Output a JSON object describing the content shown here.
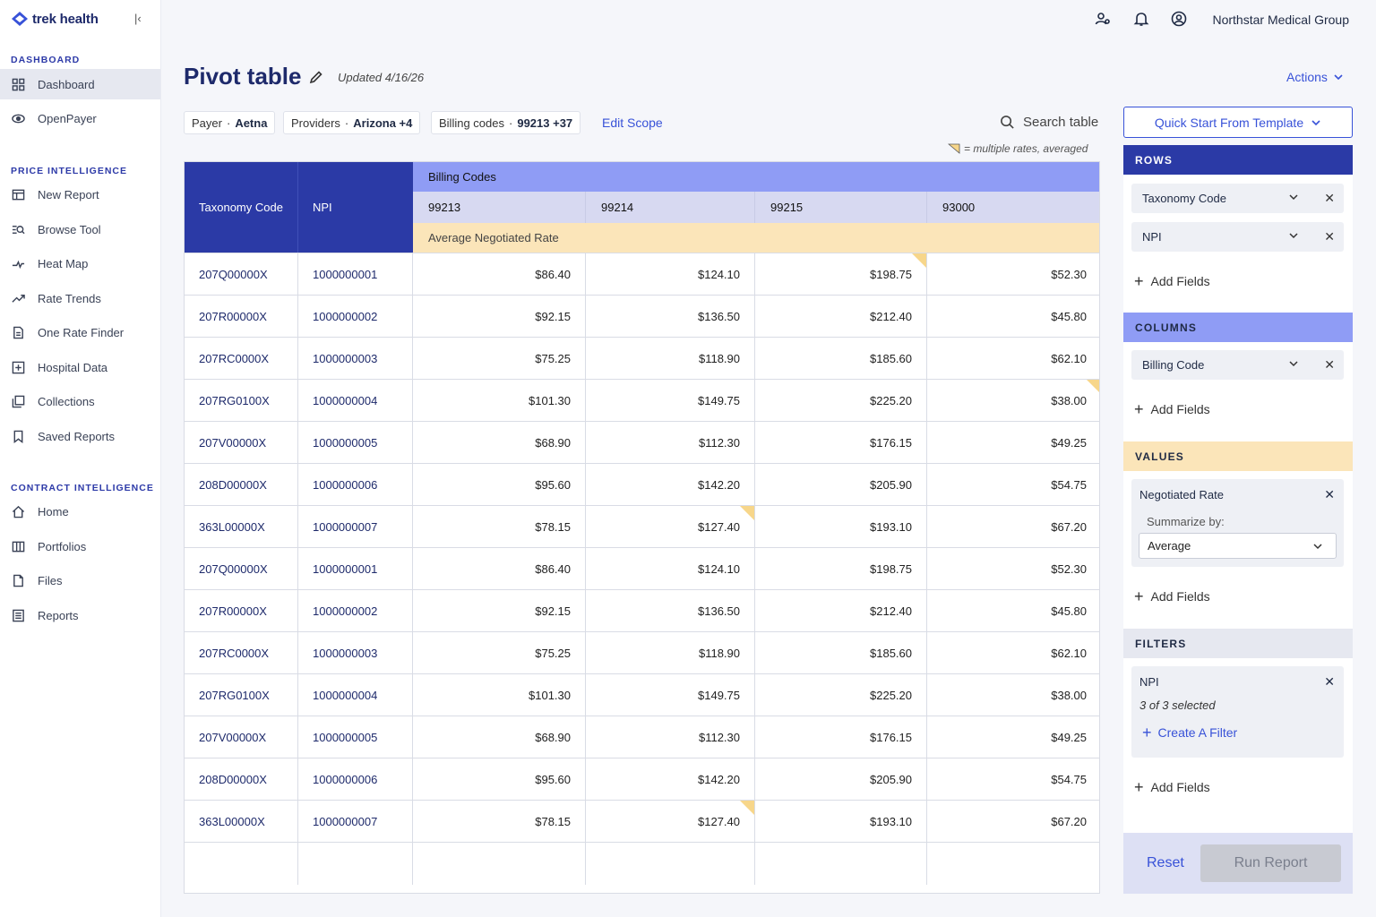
{
  "sidebar": {
    "brand": "trek health",
    "sections": [
      {
        "label": "DASHBOARD"
      },
      {
        "label": "PRICE INTELLIGENCE"
      },
      {
        "label": "CONTRACT INTELLIGENCE"
      }
    ],
    "items": [
      {
        "label": "Dashboard",
        "icon": "grid-icon",
        "active": true
      },
      {
        "label": "OpenPayer",
        "icon": "eye-icon"
      },
      {
        "label": "New Report",
        "icon": "table-icon"
      },
      {
        "label": "Browse Tool",
        "icon": "browse-search-icon"
      },
      {
        "label": "Heat Map",
        "icon": "heat-map-icon"
      },
      {
        "label": "Rate Trends",
        "icon": "trend-icon"
      },
      {
        "label": "One Rate Finder",
        "icon": "document-icon"
      },
      {
        "label": "Hospital Data",
        "icon": "plus-square-icon"
      },
      {
        "label": "Collections",
        "icon": "collections-icon"
      },
      {
        "label": "Saved Reports",
        "icon": "bookmark-icon"
      },
      {
        "label": "Home",
        "icon": "home-icon"
      },
      {
        "label": "Portfolios",
        "icon": "columns-icon"
      },
      {
        "label": "Files",
        "icon": "file-icon"
      },
      {
        "label": "Reports",
        "icon": "report-icon"
      }
    ]
  },
  "header": {
    "org": "Northstar Medical Group",
    "title": "Pivot table",
    "updated": "Updated 4/16/26",
    "actions": "Actions"
  },
  "scope": {
    "payer_label": "Payer",
    "payer_value": "Aetna",
    "providers_label": "Providers",
    "providers_value": "Arizona +4",
    "codes_label": "Billing codes",
    "codes_value": "99213 +37",
    "edit": "Edit Scope",
    "search": "Search table",
    "legend": "= multiple rates, averaged"
  },
  "table": {
    "header_taxonomy": "Taxonomy Code",
    "header_npi": "NPI",
    "header_group": "Billing Codes",
    "codes": [
      "99213",
      "99214",
      "99215",
      "93000"
    ],
    "value_label": "Average Negotiated Rate",
    "rows": [
      {
        "tax": "207Q00000X",
        "npi": "1000000001",
        "v": [
          "$86.40",
          "$124.10",
          "$198.75",
          "$52.30"
        ]
      },
      {
        "tax": "207R00000X",
        "npi": "1000000002",
        "v": [
          "$92.15",
          "$136.50",
          "$212.40",
          "$45.80"
        ]
      },
      {
        "tax": "207RC0000X",
        "npi": "1000000003",
        "v": [
          "$75.25",
          "$118.90",
          "$185.60",
          "$62.10"
        ]
      },
      {
        "tax": "207RG0100X",
        "npi": "1000000004",
        "v": [
          "$101.30",
          "$149.75",
          "$225.20",
          "$38.00"
        ]
      },
      {
        "tax": "207V00000X",
        "npi": "1000000005",
        "v": [
          "$68.90",
          "$112.30",
          "$176.15",
          "$49.25"
        ]
      },
      {
        "tax": "208D00000X",
        "npi": "1000000006",
        "v": [
          "$95.60",
          "$142.20",
          "$205.90",
          "$54.75"
        ]
      },
      {
        "tax": "363L00000X",
        "npi": "1000000007",
        "v": [
          "$78.15",
          "$127.40",
          "$193.10",
          "$67.20"
        ]
      },
      {
        "tax": "207Q00000X",
        "npi": "1000000001",
        "v": [
          "$86.40",
          "$124.10",
          "$198.75",
          "$52.30"
        ]
      },
      {
        "tax": "207R00000X",
        "npi": "1000000002",
        "v": [
          "$92.15",
          "$136.50",
          "$212.40",
          "$45.80"
        ]
      },
      {
        "tax": "207RC0000X",
        "npi": "1000000003",
        "v": [
          "$75.25",
          "$118.90",
          "$185.60",
          "$62.10"
        ]
      },
      {
        "tax": "207RG0100X",
        "npi": "1000000004",
        "v": [
          "$101.30",
          "$149.75",
          "$225.20",
          "$38.00"
        ]
      },
      {
        "tax": "207V00000X",
        "npi": "1000000005",
        "v": [
          "$68.90",
          "$112.30",
          "$176.15",
          "$49.25"
        ]
      },
      {
        "tax": "208D00000X",
        "npi": "1000000006",
        "v": [
          "$95.60",
          "$142.20",
          "$205.90",
          "$54.75"
        ]
      },
      {
        "tax": "363L00000X",
        "npi": "1000000007",
        "v": [
          "$78.15",
          "$127.40",
          "$193.10",
          "$67.20"
        ]
      }
    ]
  },
  "panel": {
    "quick_start": "Quick Start From Template",
    "rows_header": "ROWS",
    "rows_fields": [
      "Taxonomy Code",
      "NPI"
    ],
    "columns_header": "COLUMNS",
    "columns_fields": [
      "Billing Code"
    ],
    "values_header": "VALUES",
    "value_field": "Negotiated Rate",
    "summarize_label": "Summarize by:",
    "summarize_value": "Average",
    "filters_header": "FILTERS",
    "filter_field": "NPI",
    "filter_status": "3 of 3 selected",
    "create_filter": "Create A Filter",
    "add_fields": "Add Fields",
    "reset": "Reset",
    "run": "Run Report"
  },
  "colors": {
    "primary": "#2b3aa6",
    "accent": "#3852d8",
    "columns": "#8f9cf5",
    "values": "#fbe5b9"
  }
}
